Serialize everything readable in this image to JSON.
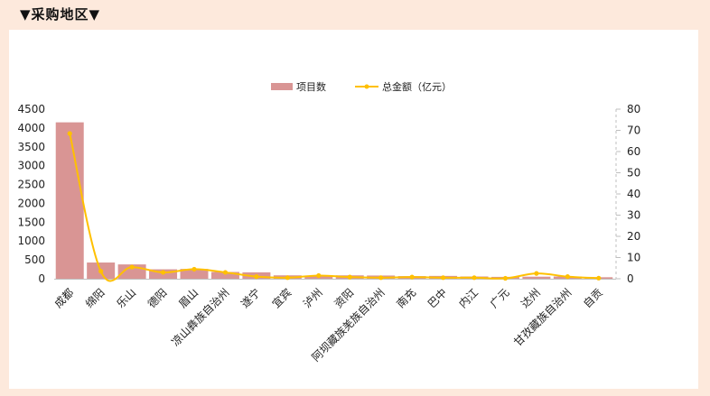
{
  "section": {
    "title": "▼采购地区▼"
  },
  "chart_data": {
    "type": "bar",
    "categories": [
      "成都",
      "绵阳",
      "乐山",
      "德阳",
      "眉山",
      "凉山彝族自治州",
      "遂宁",
      "宜宾",
      "泸州",
      "资阳",
      "阿坝藏族羌族自治州",
      "南充",
      "巴中",
      "内江",
      "广元",
      "达州",
      "甘孜藏族自治州",
      "自贡"
    ],
    "series": [
      {
        "name": "项目数",
        "kind": "bar",
        "axis": "left",
        "color": "#d99594",
        "values": [
          4150,
          430,
          380,
          250,
          260,
          180,
          170,
          90,
          85,
          90,
          85,
          70,
          75,
          60,
          50,
          55,
          60,
          40
        ]
      },
      {
        "name": "总金额（亿元）",
        "kind": "line",
        "axis": "right",
        "color": "#ffc000",
        "values": [
          68.5,
          3.5,
          5.5,
          3.0,
          4.5,
          3.0,
          1.0,
          0.5,
          1.5,
          0.8,
          0.5,
          0.8,
          0.5,
          0.5,
          0.2,
          2.5,
          1.0,
          0.3
        ]
      }
    ],
    "y_left": {
      "min": 0,
      "max": 4500,
      "step": 500,
      "ticks": [
        "0",
        "500",
        "1000",
        "1500",
        "2000",
        "2500",
        "3000",
        "3500",
        "4000",
        "4500"
      ]
    },
    "y_right": {
      "min": 0,
      "max": 80,
      "step": 10,
      "ticks": [
        "0",
        "10",
        "20",
        "30",
        "40",
        "50",
        "60",
        "70",
        "80"
      ]
    },
    "legend_position": "top-center",
    "grid": false
  }
}
